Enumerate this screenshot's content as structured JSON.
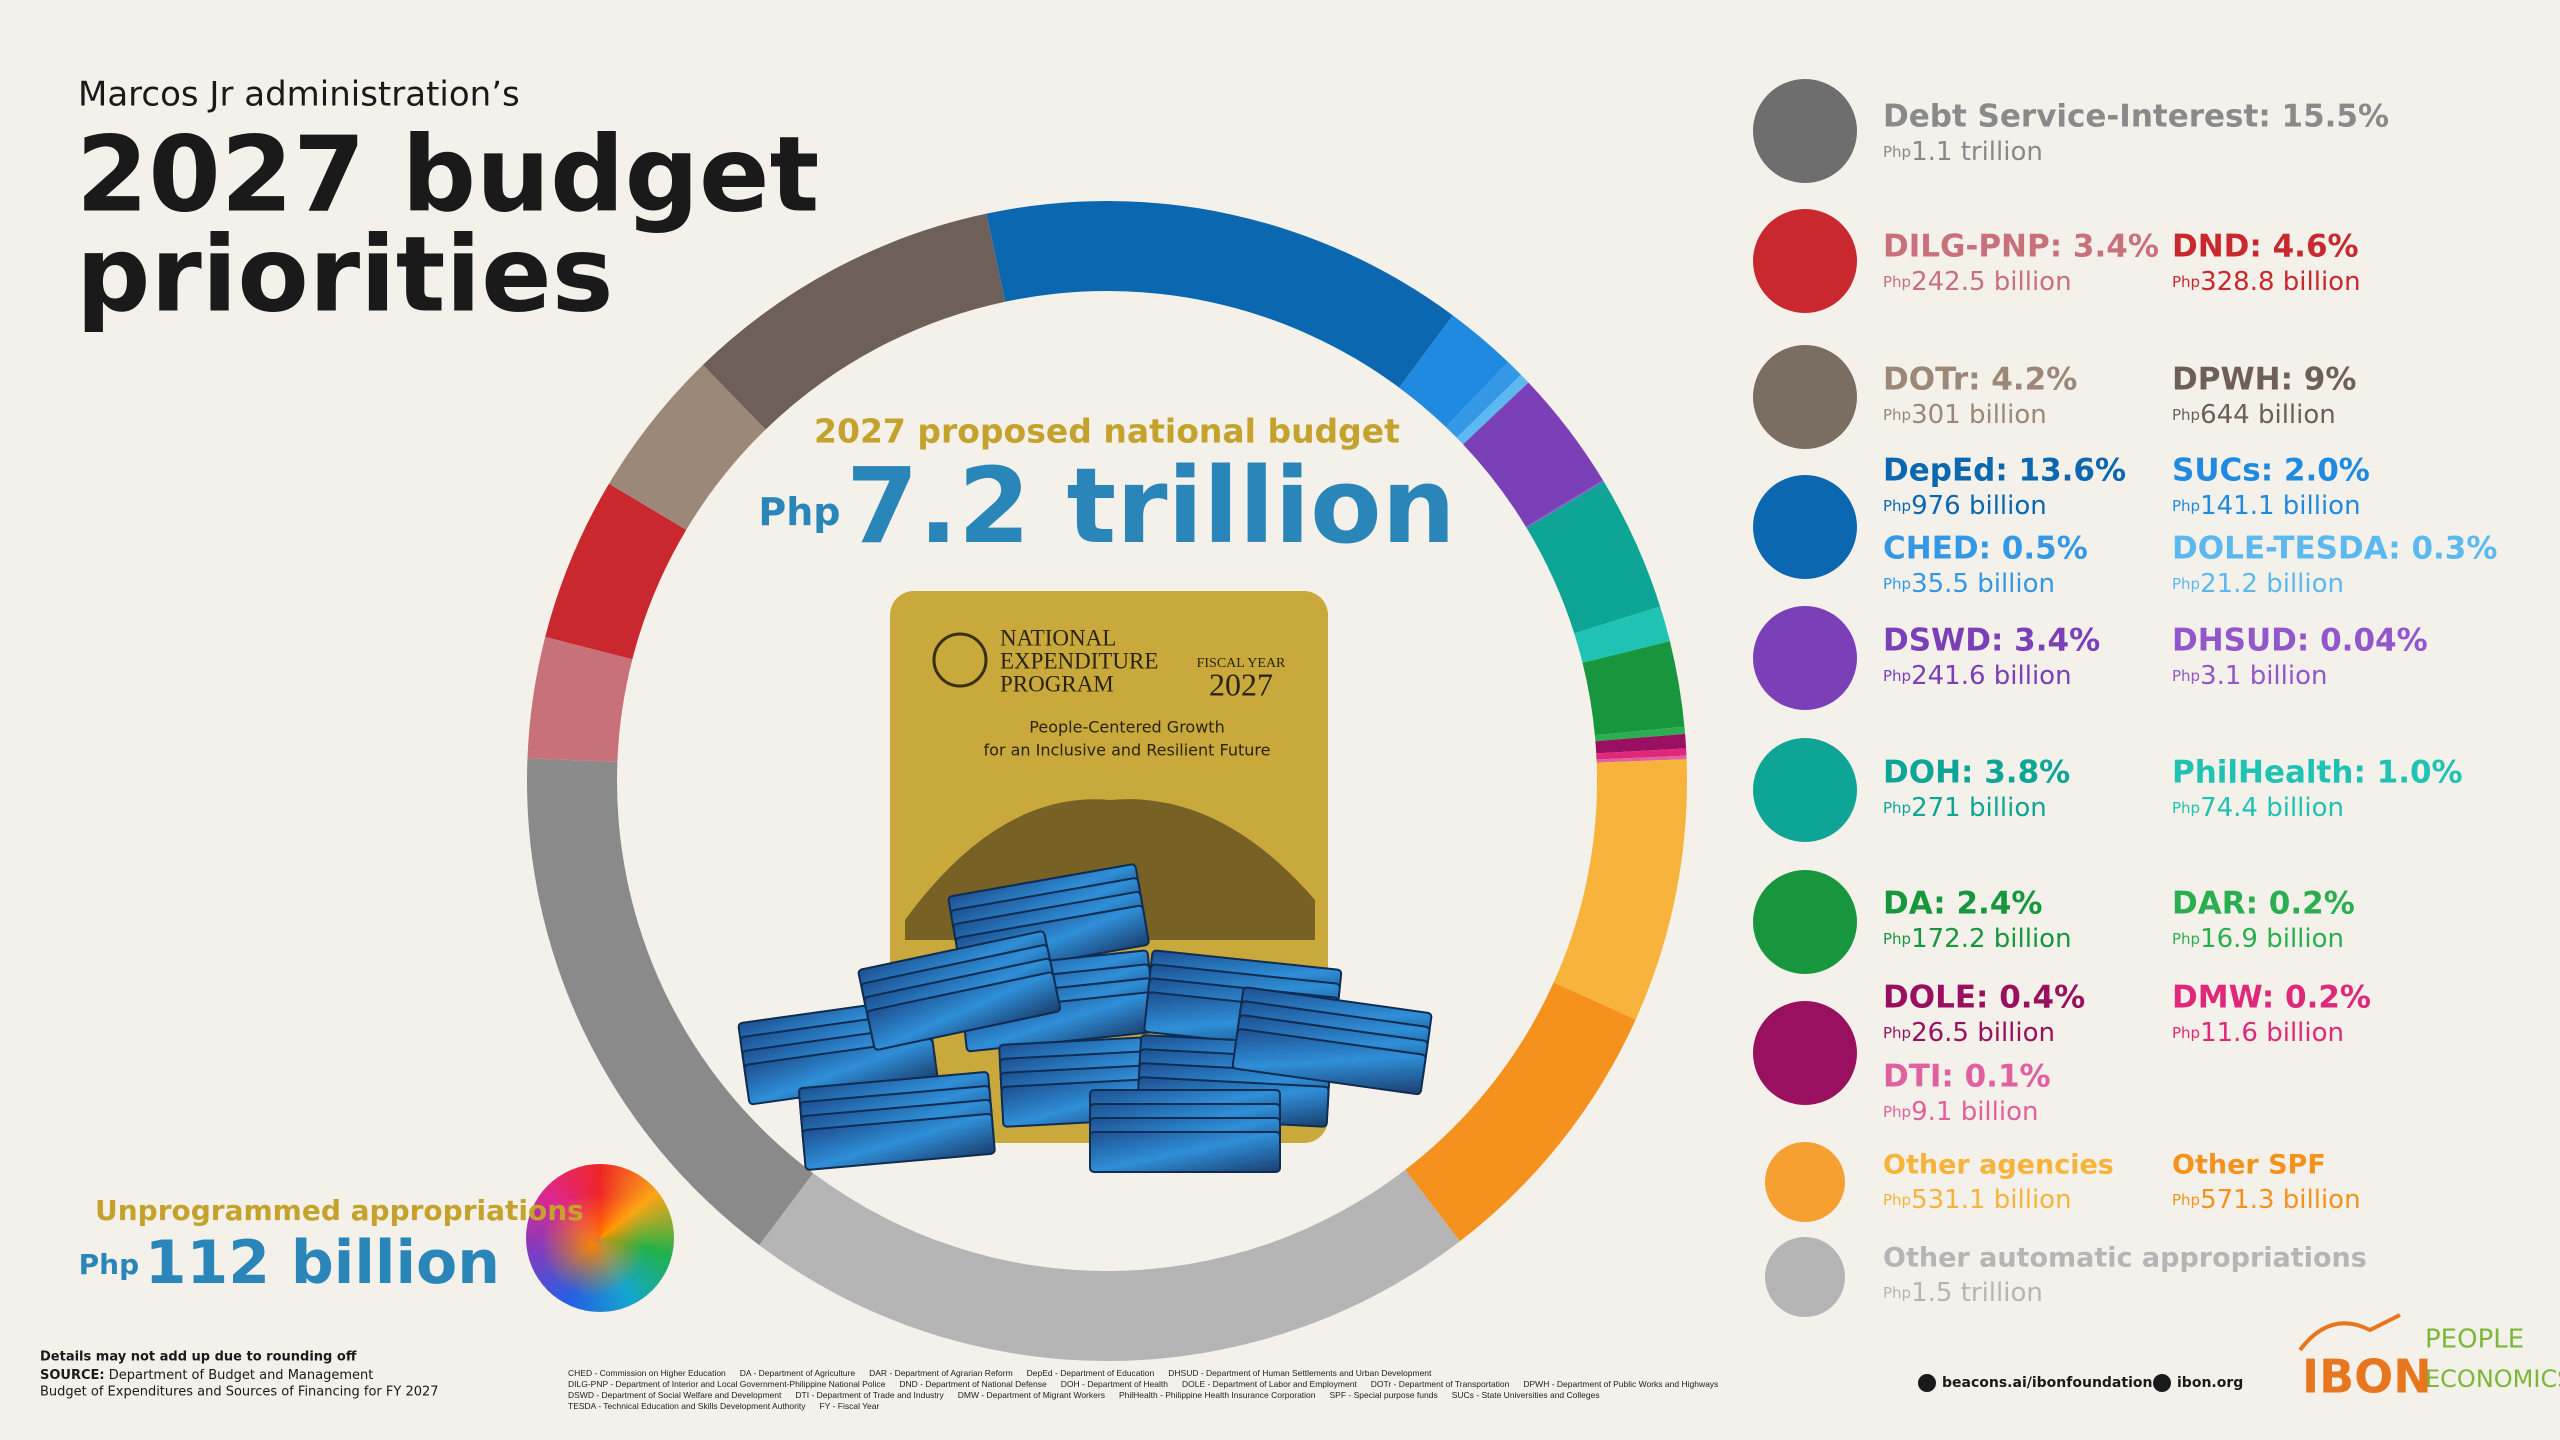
{
  "header": {
    "kicker": "Marcos Jr administration’s",
    "title_lines": [
      "2027 budget",
      "priorities"
    ]
  },
  "chart_data": {
    "type": "donut",
    "title": "2027 proposed national budget",
    "total_currency": "Php",
    "total": "7.2 trillion",
    "categories": [
      "DepEd: 13.6%",
      "SUCs: 2.0%",
      "CHED: 0.5%",
      "DOLE-TESDA: 0.3%",
      "DSWD: 3.4%",
      "DHSUD: 0.04%",
      "DOH: 3.8%",
      "PhilHealth: 1.0%",
      "DA: 2.4%",
      "DAR: 0.2%",
      "DOLE: 0.4%",
      "DMW: 0.2%",
      "DTI: 0.1%",
      "Other agencies",
      "Other SPF",
      "Other automatic appropriations",
      "Debt Service-Interest: 15.5%",
      "DILG-PNP: 3.4%",
      "DND: 4.6%",
      "DOTr: 4.2%",
      "DPWH: 9%"
    ],
    "values": [
      13.6,
      2.0,
      0.5,
      0.3,
      3.4,
      0.04,
      3.8,
      1.0,
      2.4,
      0.2,
      0.4,
      0.2,
      0.1,
      7.4,
      7.9,
      20.8,
      15.5,
      3.4,
      4.6,
      4.2,
      9
    ],
    "currency": "Php",
    "amounts": [
      "976 billion",
      "141.1 billion",
      "35.5 billion",
      "21.2 billion",
      "241.6 billion",
      "3.1 billion",
      "271 billion",
      "74.4 billion",
      "172.2 billion",
      "16.9 billion",
      "26.5 billion",
      "11.6 billion",
      "9.1 billion",
      "531.1 billion",
      "571.3 billion",
      "1.5 trillion",
      "1.1 trillion",
      "242.5 billion",
      "328.8 billion",
      "301 billion",
      "644 billion"
    ],
    "colors": [
      "#0b67b0",
      "#1f8ae0",
      "#3498e6",
      "#5cb9f0",
      "#7b3fb8",
      "#9257cc",
      "#0ea597",
      "#1fc2b3",
      "#17963e",
      "#2aae50",
      "#9a1060",
      "#e0287a",
      "#e060a0",
      "#f7b33b",
      "#f5921e",
      "#b5b5b5",
      "#8a8a8a",
      "#c9717b",
      "#c8282e",
      "#9c8878",
      "#6e6058"
    ]
  },
  "book": {
    "title_lines": [
      "NATIONAL",
      "EXPENDITURE",
      "PROGRAM"
    ],
    "fiscal": "FISCAL YEAR",
    "year": "2027",
    "tagline": [
      "People-Centered Growth",
      "for an Inclusive and Resilient Future"
    ]
  },
  "unprogrammed": {
    "label": "Unprogrammed appropriations",
    "currency": "Php",
    "amount": "112 billion"
  },
  "footer": {
    "note": "Details may not add up due to rounding off",
    "source_label": "SOURCE:",
    "source": "Department of Budget and Management",
    "source_2": "Budget of Expenditures and Sources of Financing for FY 2027",
    "abbreviations": [
      "CHED - Commission on Higher Education",
      "DA - Department of Agriculture",
      "DAR - Department of Agrarian Reform",
      "DepEd - Department of Education",
      "DHSUD - Department of Human Settlements and Urban Development",
      "DILG-PNP - Department of Interior and Local Government-Philippine National Police",
      "DND - Department of National Defense",
      "DOH - Department of Health",
      "DOLE - Department of Labor and Employment",
      "DOTr - Department of Transportation",
      "DPWH - Department of Public Works and Highways",
      "DSWD - Department of Social Welfare and Development",
      "DTI - Department of Trade and Industry",
      "DMW - Department of Migrant Workers",
      "PhilHealth - Philippine Health Insurance Corporation",
      "SPF - Special purpose funds",
      "SUCs - State Universities and Colleges",
      "TESDA - Technical Education and Skills Development Authority",
      "FY - Fiscal Year"
    ],
    "links": [
      "beacons.ai/ibonfoundation",
      "ibon.org"
    ],
    "logo": "IBON",
    "logo_2": [
      "PEOPLE",
      "ECONOMICS"
    ]
  }
}
